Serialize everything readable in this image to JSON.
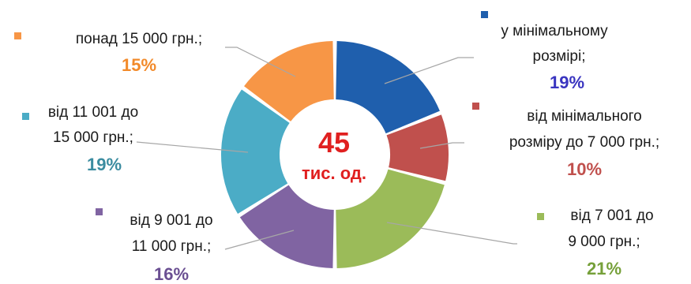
{
  "chart_data": {
    "type": "pie",
    "center_value": "45",
    "center_unit": "тис. од.",
    "slices": [
      {
        "label_lines": [
          "у мінімальному",
          "розмірі;"
        ],
        "percent_label": "19%",
        "value": 19,
        "color": "#1f5fad",
        "pct_color": "#3a35c0"
      },
      {
        "label_lines": [
          "від мінімального",
          "розміру до 7 000 грн.;"
        ],
        "percent_label": "10%",
        "value": 10,
        "color": "#c0504d",
        "pct_color": "#c0504d"
      },
      {
        "label_lines": [
          "від 7 001 до",
          "9 000 грн.;"
        ],
        "percent_label": "21%",
        "value": 21,
        "color": "#9bbb59",
        "pct_color": "#76a03a"
      },
      {
        "label_lines": [
          "від 9 001 до",
          "11 000 грн.;"
        ],
        "percent_label": "16%",
        "value": 16,
        "color": "#8064a2",
        "pct_color": "#6a4f92"
      },
      {
        "label_lines": [
          "від 11 001 до",
          "15 000 грн.;"
        ],
        "percent_label": "19%",
        "value": 19,
        "color": "#4bacc6",
        "pct_color": "#3b8ca0"
      },
      {
        "label_lines": [
          "понад 15 000 грн.;"
        ],
        "percent_label": "15%",
        "value": 15,
        "color": "#f79646",
        "pct_color": "#f28a2a"
      }
    ]
  }
}
